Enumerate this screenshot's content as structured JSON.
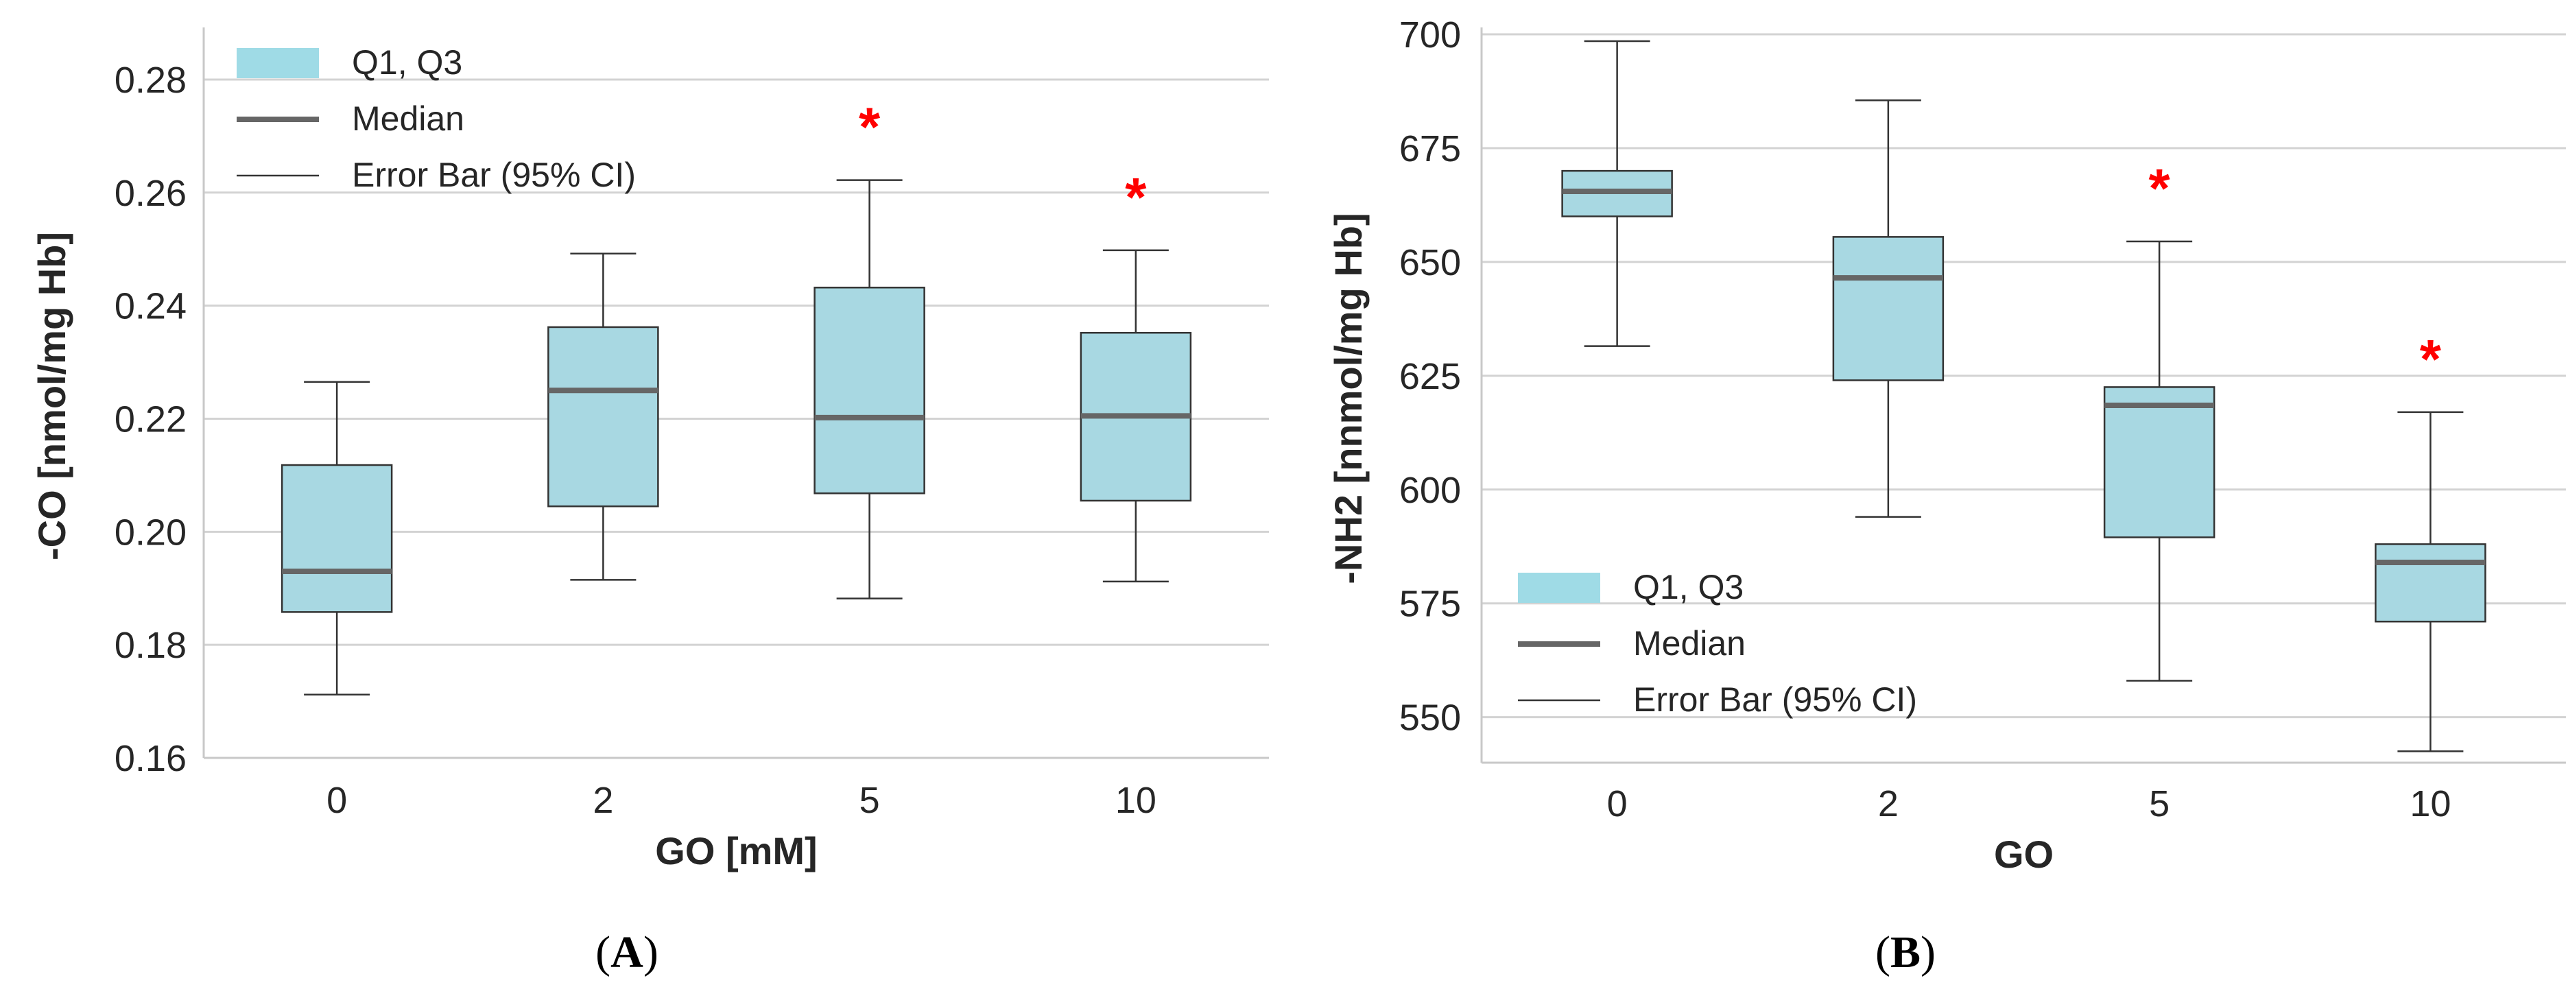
{
  "colors": {
    "box_fill": "#a8d8e2",
    "legend_fill": "#9fdbe6",
    "box_edge": "#333333",
    "median": "#666666",
    "whisker": "#333333",
    "grid": "#d3d3d3",
    "star": "#ff0000",
    "axis": "#c8c8c8"
  },
  "legend_items": [
    {
      "type": "patch",
      "label": "Q1, Q3"
    },
    {
      "type": "thick-line",
      "label": "Median"
    },
    {
      "type": "thin-line",
      "label": "Error Bar (95% CI)"
    }
  ],
  "chart_data": [
    {
      "panel": "A",
      "panel_label": {
        "open": "(",
        "letter": "A",
        "close": ")"
      },
      "type": "box",
      "categories": [
        "0",
        "2",
        "5",
        "10"
      ],
      "xlabel": "GO [mM]",
      "ylabel": "-CO [nmol/mg Hb]",
      "ylim": [
        0.16,
        0.288
      ],
      "yticks": [
        0.16,
        0.18,
        0.2,
        0.22,
        0.24,
        0.26,
        0.28
      ],
      "ytick_labels": [
        "0.16",
        "0.18",
        "0.20",
        "0.22",
        "0.24",
        "0.26",
        "0.28"
      ],
      "grid": true,
      "legend_placement": "top-left",
      "boxes": [
        {
          "category": "0",
          "whisker_low": 0.1712,
          "q1": 0.1858,
          "median": 0.193,
          "q3": 0.2118,
          "whisker_high": 0.2265,
          "significant": false
        },
        {
          "category": "2",
          "whisker_low": 0.1915,
          "q1": 0.2045,
          "median": 0.225,
          "q3": 0.2362,
          "whisker_high": 0.2492,
          "significant": false
        },
        {
          "category": "5",
          "whisker_low": 0.1882,
          "q1": 0.2068,
          "median": 0.2202,
          "q3": 0.2432,
          "whisker_high": 0.2622,
          "significant": true
        },
        {
          "category": "10",
          "whisker_low": 0.1912,
          "q1": 0.2055,
          "median": 0.2205,
          "q3": 0.2352,
          "whisker_high": 0.2498,
          "significant": true
        }
      ],
      "significance_marker": "*"
    },
    {
      "panel": "B",
      "panel_label": {
        "open": "(",
        "letter": "B",
        "close": ")"
      },
      "type": "box",
      "categories": [
        "0",
        "2",
        "5",
        "10"
      ],
      "xlabel": "GO",
      "ylabel": "-NH2 [nnmol/mg Hb]",
      "ylim": [
        540,
        700
      ],
      "yticks": [
        550,
        575,
        600,
        625,
        650,
        675,
        700
      ],
      "ytick_labels": [
        "550",
        "575",
        "600",
        "625",
        "650",
        "675",
        "700"
      ],
      "grid": true,
      "legend_placement": "lower-left",
      "boxes": [
        {
          "category": "0",
          "whisker_low": 631.5,
          "q1": 660,
          "median": 665.5,
          "q3": 670,
          "whisker_high": 698.5,
          "significant": false
        },
        {
          "category": "2",
          "whisker_low": 594,
          "q1": 624,
          "median": 646.5,
          "q3": 655.5,
          "whisker_high": 685.5,
          "significant": false
        },
        {
          "category": "5",
          "whisker_low": 558,
          "q1": 589.5,
          "median": 618.5,
          "q3": 622.5,
          "whisker_high": 654.5,
          "significant": true
        },
        {
          "category": "10",
          "whisker_low": 542.5,
          "q1": 571,
          "median": 584,
          "q3": 588,
          "whisker_high": 617,
          "significant": true
        }
      ],
      "significance_marker": "*"
    }
  ]
}
